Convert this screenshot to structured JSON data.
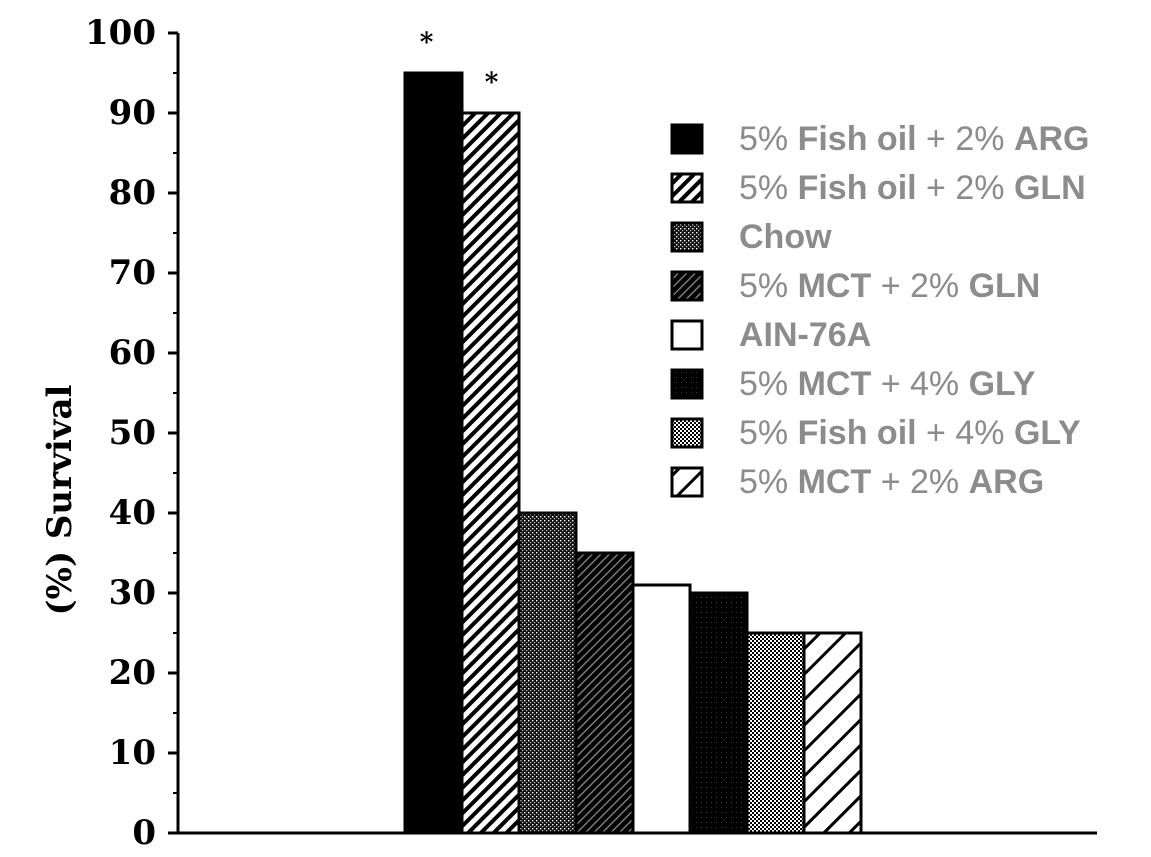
{
  "chart_data": {
    "type": "bar",
    "title": "",
    "xlabel": "",
    "ylabel": "(%) Survival",
    "ylim": [
      0,
      100
    ],
    "yticks": [
      0,
      10,
      20,
      30,
      40,
      50,
      60,
      70,
      80,
      90,
      100
    ],
    "grid": false,
    "legend_position": "top-right",
    "categories": [
      "5% Fish oil + 2% ARG",
      "5% Fish oil + 2% GLN",
      "Chow",
      "5% MCT + 2% GLN",
      "AIN-76A",
      "5% MCT + 4% GLY",
      "5% Fish oil + 4% GLY",
      "5% MCT + 2% ARG"
    ],
    "values": [
      95,
      90,
      40,
      35,
      31,
      30,
      25,
      25
    ],
    "significance_markers": [
      "*",
      "*",
      "",
      "",
      "",
      "",
      "",
      ""
    ],
    "legend": [
      {
        "parts": [
          {
            "t": "5% ",
            "b": false
          },
          {
            "t": "Fish oil",
            "b": true
          },
          {
            "t": " + 2% ",
            "b": false
          },
          {
            "t": "ARG",
            "b": true
          }
        ],
        "pattern": "solid"
      },
      {
        "parts": [
          {
            "t": "5% ",
            "b": false
          },
          {
            "t": "Fish oil",
            "b": true
          },
          {
            "t": " + 2% ",
            "b": false
          },
          {
            "t": "GLN",
            "b": true
          }
        ],
        "pattern": "diag"
      },
      {
        "parts": [
          {
            "t": "Chow",
            "b": true
          }
        ],
        "pattern": "dots-dense"
      },
      {
        "parts": [
          {
            "t": "5% ",
            "b": false
          },
          {
            "t": "MCT",
            "b": true
          },
          {
            "t": " + 2% ",
            "b": false
          },
          {
            "t": "GLN",
            "b": true
          }
        ],
        "pattern": "dark-diag"
      },
      {
        "parts": [
          {
            "t": "AIN-76A",
            "b": true
          }
        ],
        "pattern": "white"
      },
      {
        "parts": [
          {
            "t": "5% ",
            "b": false
          },
          {
            "t": "MCT",
            "b": true
          },
          {
            "t": " + 4% ",
            "b": false
          },
          {
            "t": "GLY",
            "b": true
          }
        ],
        "pattern": "solid-dark"
      },
      {
        "parts": [
          {
            "t": "5% ",
            "b": false
          },
          {
            "t": "Fish oil",
            "b": true
          },
          {
            "t": " + 4% ",
            "b": false
          },
          {
            "t": "GLY",
            "b": true
          }
        ],
        "pattern": "check"
      },
      {
        "parts": [
          {
            "t": "5% ",
            "b": false
          },
          {
            "t": "MCT",
            "b": true
          },
          {
            "t": " + 2% ",
            "b": false
          },
          {
            "t": "ARG",
            "b": true
          }
        ],
        "pattern": "wide-diag"
      }
    ],
    "colors": {
      "bar_stroke": "#000000",
      "legend_text": "#8c8c8c",
      "solid": "#000000",
      "background": "#ffffff"
    }
  }
}
